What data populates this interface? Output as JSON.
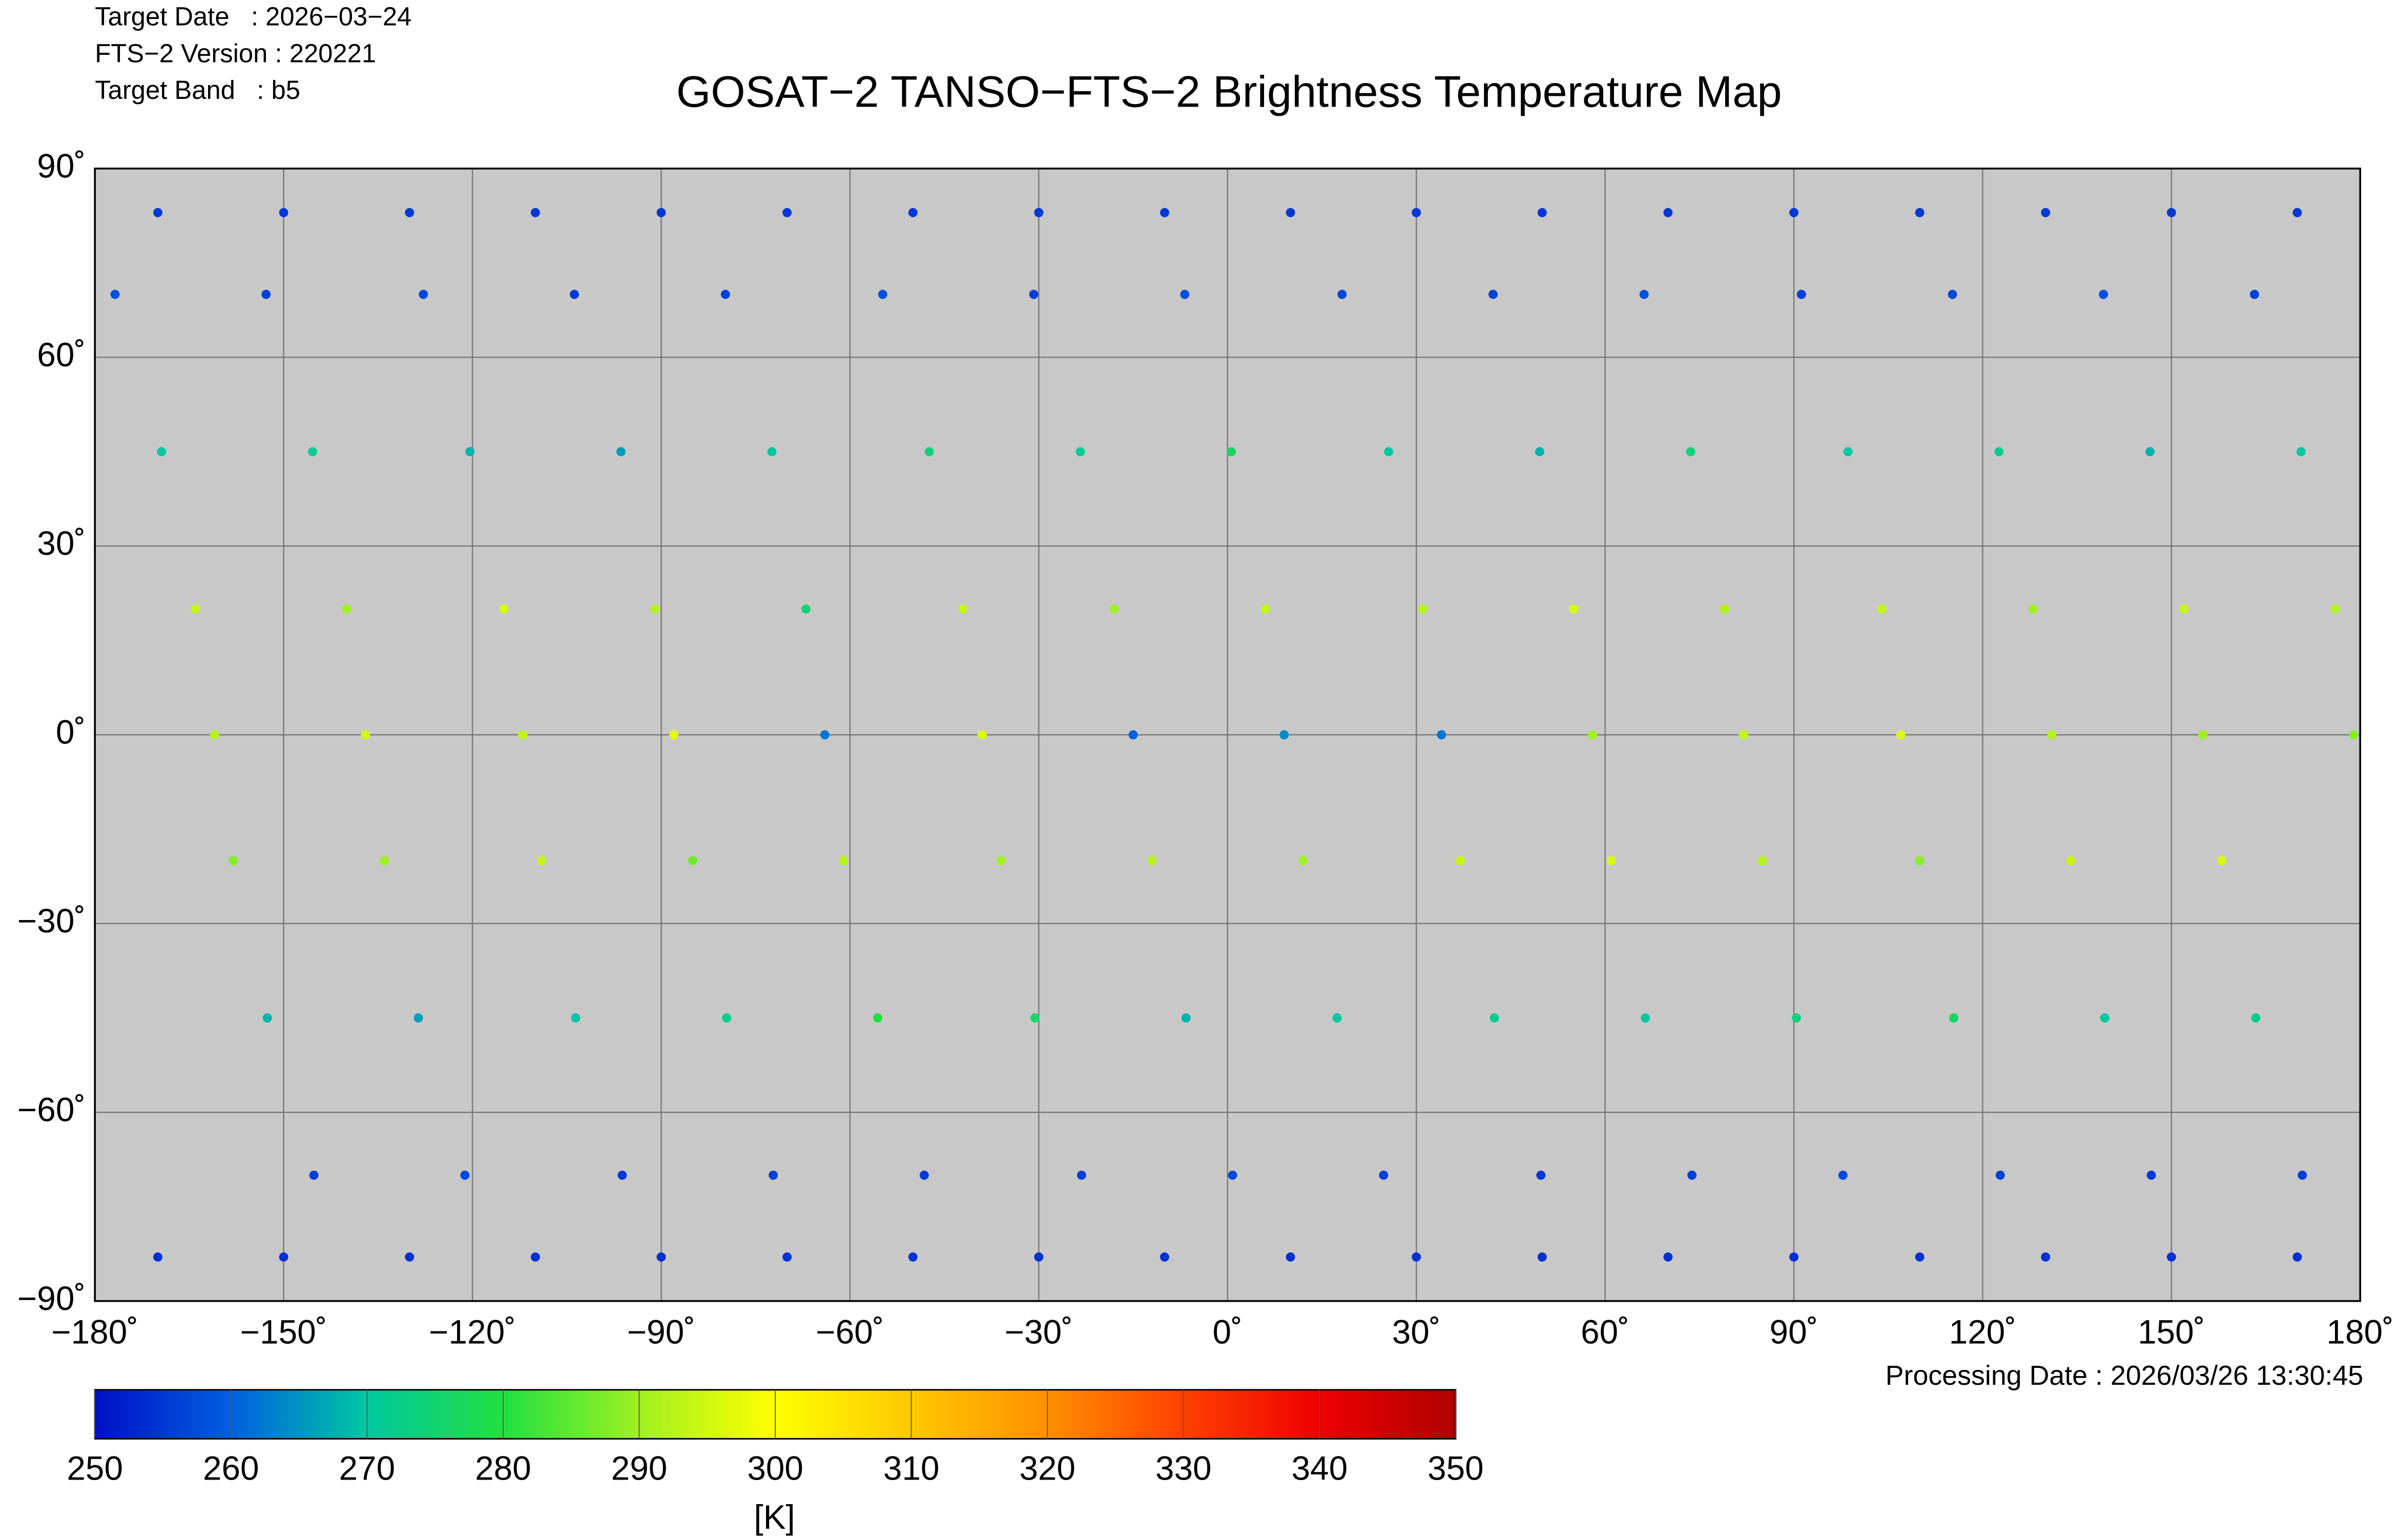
{
  "chart_data": {
    "type": "scatter",
    "info": [
      "Target Date   : 2026−03−24",
      "FTS−2 Version : 220221",
      "Target Band   : b5"
    ],
    "title": "GOSAT−2 TANSO−FTS−2 Brightness Temperature Map",
    "processing_date": "Processing Date : 2026/03/26 13:30:45",
    "xlim": [
      -180,
      180
    ],
    "ylim": [
      -90,
      90
    ],
    "grid": true,
    "xticks": [
      {
        "value": -180,
        "label": "−180˚"
      },
      {
        "value": -150,
        "label": "−150˚"
      },
      {
        "value": -120,
        "label": "−120˚"
      },
      {
        "value": -90,
        "label": "−90˚"
      },
      {
        "value": -60,
        "label": "−60˚"
      },
      {
        "value": -30,
        "label": "−30˚"
      },
      {
        "value": 0,
        "label": "0˚"
      },
      {
        "value": 30,
        "label": "30˚"
      },
      {
        "value": 60,
        "label": "60˚"
      },
      {
        "value": 90,
        "label": "90˚"
      },
      {
        "value": 120,
        "label": "120˚"
      },
      {
        "value": 150,
        "label": "150˚"
      },
      {
        "value": 180,
        "label": "180˚"
      }
    ],
    "yticks": [
      {
        "value": 90,
        "label": "90˚"
      },
      {
        "value": 60,
        "label": "60˚"
      },
      {
        "value": 30,
        "label": "30˚"
      },
      {
        "value": 0,
        "label": "0˚"
      },
      {
        "value": -30,
        "label": "−30˚"
      },
      {
        "value": -60,
        "label": "−60˚"
      },
      {
        "value": -90,
        "label": "−90˚"
      }
    ],
    "x": [
      -176.8,
      -169.4,
      -164,
      -161,
      -158,
      -152.6,
      -145.2,
      -152.8,
      -145.4,
      -140,
      -137,
      -134,
      -128.6,
      -121.2,
      -127.8,
      -120.4,
      -115,
      -112,
      -109,
      -103.6,
      -96.2,
      -103.8,
      -96.4,
      -91,
      -88,
      -85,
      -79.6,
      -72.2,
      -79.8,
      -72.4,
      -67,
      -64,
      -61,
      -55.6,
      -48.2,
      -54.8,
      -47.4,
      -42,
      -39,
      -36,
      -30.6,
      -23.2,
      -30.8,
      -23.4,
      -18,
      -15,
      -12,
      -6.6,
      0.8,
      -6.8,
      0.6,
      6,
      9,
      12,
      17.4,
      24.8,
      18.2,
      25.6,
      31,
      34,
      37,
      42.4,
      49.8,
      42.2,
      49.6,
      55,
      58,
      61,
      66.4,
      73.8,
      66.2,
      73.6,
      79,
      82,
      85,
      90.4,
      97.8,
      91.2,
      98.6,
      104,
      107,
      110,
      115.4,
      122.8,
      115.2,
      122.6,
      128,
      131,
      134,
      139.4,
      146.8,
      139.2,
      146.6,
      152,
      155,
      158,
      163.4,
      170.8,
      163.2,
      170.6,
      176,
      179,
      -170,
      -150,
      -130,
      -110,
      -90,
      -70,
      -50,
      -30,
      -10,
      10,
      30,
      50,
      70,
      90,
      110,
      130,
      150,
      170,
      -170,
      -150,
      -130,
      -110,
      -90,
      -70,
      -50,
      -30,
      -10,
      10,
      30,
      50,
      70,
      90,
      110,
      130,
      150,
      170
    ],
    "y": [
      70,
      45,
      20,
      0,
      -20,
      -45,
      -70,
      70,
      45,
      20,
      0,
      -20,
      -45,
      -70,
      70,
      45,
      20,
      0,
      -20,
      -45,
      -70,
      70,
      45,
      20,
      0,
      -20,
      -45,
      -70,
      70,
      45,
      20,
      0,
      -20,
      -45,
      -70,
      70,
      45,
      20,
      0,
      -20,
      -45,
      -70,
      70,
      45,
      20,
      0,
      -20,
      -45,
      -70,
      70,
      45,
      20,
      0,
      -20,
      -45,
      -70,
      70,
      45,
      20,
      0,
      -20,
      -45,
      -70,
      70,
      45,
      20,
      0,
      -20,
      -45,
      -70,
      70,
      45,
      20,
      0,
      -20,
      -45,
      -70,
      70,
      45,
      20,
      0,
      -20,
      -45,
      -70,
      70,
      45,
      20,
      0,
      -20,
      -45,
      -70,
      70,
      45,
      20,
      0,
      -20,
      -45,
      -70,
      70,
      45,
      20,
      0,
      83,
      83,
      83,
      83,
      83,
      83,
      83,
      83,
      83,
      83,
      83,
      83,
      83,
      83,
      83,
      83,
      83,
      83,
      -83,
      -83,
      -83,
      -83,
      -83,
      -83,
      -83,
      -83,
      -83,
      -83,
      -83,
      -83,
      -83,
      -83,
      -83,
      -83,
      -83,
      -83
    ],
    "values": [
      258,
      270,
      294,
      292,
      288,
      268,
      256,
      256,
      272,
      290,
      295,
      290,
      266,
      257,
      257,
      268,
      296,
      293,
      294,
      270,
      255,
      255,
      266,
      292,
      297,
      286,
      272,
      256,
      256,
      270,
      275,
      262,
      292,
      280,
      255,
      258,
      274,
      294,
      296,
      290,
      276,
      256,
      256,
      272,
      290,
      260,
      292,
      268,
      257,
      258,
      276,
      294,
      264,
      290,
      270,
      256,
      257,
      270,
      292,
      262,
      294,
      272,
      255,
      256,
      268,
      296,
      290,
      296,
      270,
      256,
      258,
      274,
      292,
      294,
      292,
      274,
      257,
      256,
      270,
      294,
      296,
      288,
      276,
      256,
      257,
      272,
      290,
      292,
      294,
      270,
      255,
      258,
      268,
      294,
      290,
      296,
      272,
      256,
      256,
      270,
      292,
      288,
      255,
      255,
      255,
      255,
      255,
      255,
      255,
      255,
      255,
      255,
      255,
      255,
      255,
      255,
      255,
      255,
      255,
      255,
      254,
      254,
      254,
      254,
      254,
      254,
      254,
      254,
      254,
      254,
      254,
      254,
      254,
      254,
      254,
      254,
      254,
      254
    ],
    "colorbar": {
      "lim": [
        250,
        350
      ],
      "ticks": [
        250,
        260,
        270,
        280,
        290,
        300,
        310,
        320,
        330,
        340,
        350
      ],
      "colors": [
        "#0010c8",
        "#0060e0",
        "#00c8a0",
        "#20e040",
        "#a0f020",
        "#ffff00",
        "#ffc800",
        "#ff9000",
        "#ff4000",
        "#ee0000",
        "#b00000"
      ],
      "label": "[K]"
    }
  }
}
